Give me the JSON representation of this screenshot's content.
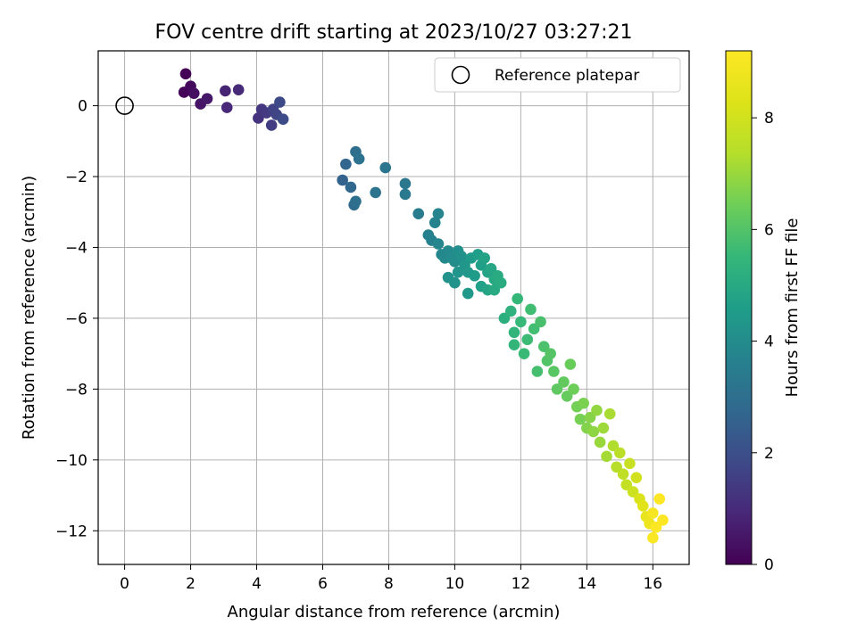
{
  "chart_data": {
    "type": "scatter",
    "title": "FOV centre drift starting at 2023/10/27 03:27:21",
    "xlabel": "Angular distance from reference (arcmin)",
    "ylabel": "Rotation from reference (arcmin)",
    "xlim": [
      -0.8,
      17.1
    ],
    "ylim": [
      -12.95,
      1.55
    ],
    "xticks": [
      0,
      2,
      4,
      6,
      8,
      10,
      12,
      14,
      16
    ],
    "yticks": [
      0,
      -2,
      -4,
      -6,
      -8,
      -10,
      -12
    ],
    "grid": true,
    "legend": {
      "position": "top-right",
      "entries": [
        "Reference platepar"
      ]
    },
    "reference": {
      "x": 0,
      "y": 0,
      "marker": "open-circle"
    },
    "colorbar": {
      "label": "Hours from first FF file",
      "range": [
        0,
        9.2
      ],
      "ticks": [
        0,
        2,
        4,
        6,
        8
      ],
      "colormap": "viridis"
    },
    "series": [
      {
        "points": [
          [
            1.85,
            0.9,
            0.05
          ],
          [
            1.8,
            0.38,
            0.1
          ],
          [
            2.0,
            0.55,
            0.2
          ],
          [
            2.1,
            0.35,
            0.3
          ],
          [
            2.3,
            0.05,
            0.45
          ],
          [
            2.5,
            0.2,
            0.55
          ],
          [
            3.05,
            0.42,
            0.8
          ],
          [
            3.1,
            -0.05,
            0.95
          ],
          [
            3.45,
            0.45,
            1.0
          ],
          [
            4.05,
            -0.35,
            1.2
          ],
          [
            4.15,
            -0.1,
            1.3
          ],
          [
            4.3,
            -0.2,
            1.4
          ],
          [
            4.45,
            -0.55,
            1.5
          ],
          [
            4.5,
            -0.1,
            1.6
          ],
          [
            4.6,
            -0.25,
            1.7
          ],
          [
            4.7,
            0.1,
            1.8
          ],
          [
            4.8,
            -0.38,
            1.9
          ],
          [
            6.6,
            -2.1,
            2.6
          ],
          [
            6.7,
            -1.65,
            2.7
          ],
          [
            6.85,
            -2.3,
            2.8
          ],
          [
            6.95,
            -2.8,
            2.9
          ],
          [
            7.0,
            -2.7,
            3.0
          ],
          [
            7.0,
            -1.3,
            3.0
          ],
          [
            7.1,
            -1.5,
            3.1
          ],
          [
            7.6,
            -2.45,
            3.2
          ],
          [
            7.9,
            -1.75,
            3.25
          ],
          [
            8.5,
            -2.2,
            3.3
          ],
          [
            8.5,
            -2.5,
            3.35
          ],
          [
            8.9,
            -3.05,
            3.45
          ],
          [
            9.2,
            -3.65,
            3.6
          ],
          [
            9.3,
            -3.8,
            3.65
          ],
          [
            9.4,
            -3.3,
            3.7
          ],
          [
            9.5,
            -3.05,
            3.75
          ],
          [
            9.5,
            -3.9,
            3.8
          ],
          [
            9.6,
            -4.2,
            3.85
          ],
          [
            9.7,
            -4.3,
            3.9
          ],
          [
            9.8,
            -4.1,
            3.95
          ],
          [
            9.9,
            -4.3,
            4.0
          ],
          [
            10.0,
            -4.4,
            4.05
          ],
          [
            10.1,
            -4.1,
            4.1
          ],
          [
            10.2,
            -4.25,
            4.15
          ],
          [
            9.8,
            -4.85,
            4.2
          ],
          [
            10.0,
            -5.0,
            4.25
          ],
          [
            10.1,
            -4.7,
            4.3
          ],
          [
            10.3,
            -4.5,
            4.35
          ],
          [
            10.4,
            -4.7,
            4.4
          ],
          [
            10.4,
            -5.3,
            4.45
          ],
          [
            10.5,
            -4.3,
            4.5
          ],
          [
            10.6,
            -4.8,
            4.55
          ],
          [
            10.7,
            -4.2,
            4.6
          ],
          [
            10.8,
            -4.5,
            4.65
          ],
          [
            10.8,
            -5.1,
            4.7
          ],
          [
            10.9,
            -4.3,
            4.75
          ],
          [
            11.0,
            -4.7,
            4.8
          ],
          [
            11.0,
            -5.2,
            4.85
          ],
          [
            11.1,
            -4.6,
            4.9
          ],
          [
            11.2,
            -4.9,
            4.95
          ],
          [
            11.2,
            -5.2,
            5.0
          ],
          [
            11.3,
            -4.8,
            5.05
          ],
          [
            11.4,
            -5.0,
            5.1
          ],
          [
            11.5,
            -6.0,
            5.2
          ],
          [
            11.7,
            -5.8,
            5.3
          ],
          [
            11.8,
            -6.4,
            5.4
          ],
          [
            11.8,
            -6.75,
            5.45
          ],
          [
            11.9,
            -5.45,
            5.5
          ],
          [
            12.0,
            -6.1,
            5.55
          ],
          [
            12.1,
            -7.0,
            5.6
          ],
          [
            12.2,
            -6.6,
            5.65
          ],
          [
            12.3,
            -5.75,
            5.7
          ],
          [
            12.4,
            -6.3,
            5.75
          ],
          [
            12.5,
            -7.5,
            5.8
          ],
          [
            12.6,
            -6.1,
            5.85
          ],
          [
            12.7,
            -6.8,
            5.9
          ],
          [
            12.8,
            -7.2,
            6.0
          ],
          [
            12.9,
            -7.0,
            6.05
          ],
          [
            13.0,
            -7.5,
            6.1
          ],
          [
            13.1,
            -8.0,
            6.2
          ],
          [
            13.3,
            -7.8,
            6.25
          ],
          [
            13.4,
            -8.2,
            6.3
          ],
          [
            13.5,
            -7.3,
            6.35
          ],
          [
            13.6,
            -8.0,
            6.4
          ],
          [
            13.7,
            -8.5,
            6.5
          ],
          [
            13.8,
            -8.85,
            6.55
          ],
          [
            13.9,
            -8.4,
            6.6
          ],
          [
            14.0,
            -9.1,
            6.7
          ],
          [
            14.1,
            -8.8,
            6.75
          ],
          [
            14.2,
            -9.2,
            6.85
          ],
          [
            14.3,
            -8.6,
            6.9
          ],
          [
            14.4,
            -9.5,
            7.0
          ],
          [
            14.5,
            -9.1,
            7.05
          ],
          [
            14.6,
            -9.9,
            7.15
          ],
          [
            14.7,
            -8.7,
            7.2
          ],
          [
            14.8,
            -9.6,
            7.3
          ],
          [
            14.9,
            -10.2,
            7.4
          ],
          [
            15.0,
            -9.8,
            7.5
          ],
          [
            15.1,
            -10.4,
            7.6
          ],
          [
            15.2,
            -10.7,
            7.7
          ],
          [
            15.3,
            -10.1,
            7.8
          ],
          [
            15.4,
            -10.9,
            7.9
          ],
          [
            15.5,
            -10.5,
            8.0
          ],
          [
            15.6,
            -11.1,
            8.2
          ],
          [
            15.7,
            -11.3,
            8.4
          ],
          [
            15.8,
            -11.6,
            8.6
          ],
          [
            15.9,
            -11.8,
            8.8
          ],
          [
            16.0,
            -11.5,
            9.0
          ],
          [
            16.0,
            -12.2,
            9.1
          ],
          [
            16.1,
            -11.9,
            9.15
          ],
          [
            16.2,
            -11.1,
            9.2
          ],
          [
            16.3,
            -11.7,
            9.2
          ]
        ]
      }
    ]
  }
}
